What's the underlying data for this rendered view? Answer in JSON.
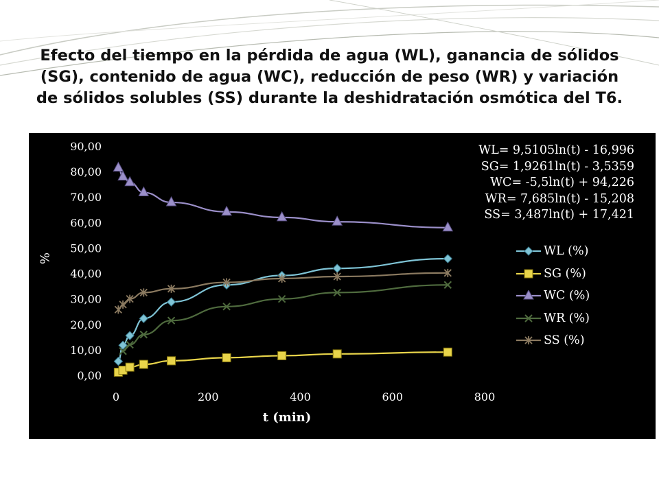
{
  "slide": {
    "title": "Efecto del tiempo en la pérdida de agua (WL), ganancia de sólidos (SG), contenido de agua (WC), reducción de peso (WR) y variación de sólidos solubles (SS) durante la deshidratación osmótica del T6."
  },
  "colors": {
    "background_panel": "#000000",
    "axis_text": "#ffffff",
    "WL": "#7fc4d6",
    "SG": "#e8d44a",
    "WC": "#9b8fc9",
    "WR": "#4f6b3e",
    "SS": "#8b7a60"
  },
  "chart_data": {
    "type": "line",
    "xlabel": "t (min)",
    "ylabel": "%",
    "xlim": [
      0,
      800
    ],
    "ylim": [
      0,
      90
    ],
    "x_ticks": [
      "0",
      "200",
      "400",
      "600",
      "800"
    ],
    "y_ticks": [
      "0,00",
      "10,00",
      "20,00",
      "30,00",
      "40,00",
      "50,00",
      "60,00",
      "70,00",
      "80,00",
      "90,00"
    ],
    "legend_position": "right",
    "grid": false,
    "x": [
      5,
      15,
      30,
      60,
      120,
      240,
      360,
      480,
      720
    ],
    "series": [
      {
        "name": "WL (%)",
        "key": "WL",
        "marker": "diamond",
        "values": [
          5.5,
          11.8,
          15.6,
          22.3,
          28.8,
          35.5,
          39.2,
          42.0,
          45.8
        ]
      },
      {
        "name": "SG (%)",
        "key": "SG",
        "marker": "square",
        "values": [
          1.2,
          2.0,
          3.2,
          4.3,
          5.7,
          6.9,
          7.7,
          8.4,
          9.1
        ]
      },
      {
        "name": "WC (%)",
        "key": "WC",
        "marker": "triangle",
        "values": [
          81.5,
          78.0,
          75.8,
          71.8,
          67.9,
          64.2,
          62.0,
          60.3,
          58.0
        ]
      },
      {
        "name": "WR (%)",
        "key": "WR",
        "marker": "x",
        "values": [
          null,
          9.5,
          12.0,
          16.0,
          21.5,
          27.0,
          30.0,
          32.5,
          35.5
        ]
      },
      {
        "name": "SS (%)",
        "key": "SS",
        "marker": "star",
        "values": [
          25.8,
          27.8,
          30.0,
          32.5,
          34.0,
          36.5,
          38.0,
          38.8,
          40.2
        ]
      }
    ],
    "annotations": [
      "WL= 9,5105ln(t) - 16,996",
      "SG= 1,9261ln(t) - 3,5359",
      "WC= -5,5ln(t) + 94,226",
      "WR= 7,685ln(t) - 15,208",
      "SS= 3,487ln(t) + 17,421"
    ]
  }
}
